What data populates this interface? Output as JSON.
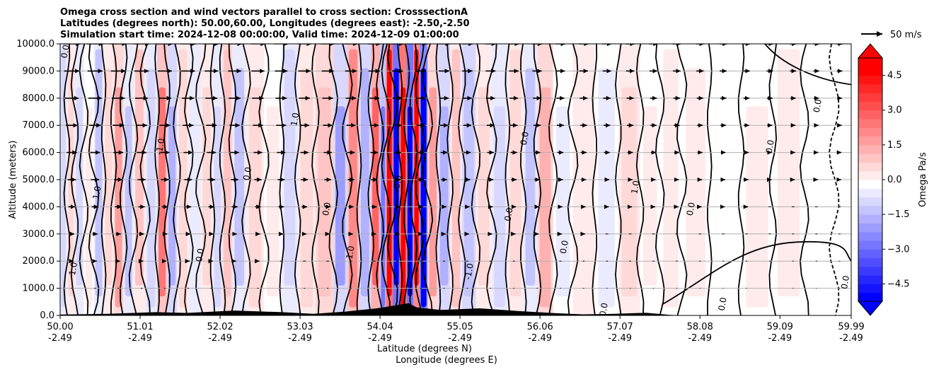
{
  "chart_data": {
    "type": "contour",
    "title": [
      "Omega cross section and wind vectors parallel to cross section: CrosssectionA",
      "Latitudes (degrees north): 50.00,60.00, Longitudes (degrees east): -2.50,-2.50",
      "Simulation start time: 2024-12-08 00:00:00, Valid time: 2024-12-09 01:00:00"
    ],
    "xlabel": "Latitude (degrees N)",
    "xlabel2": "Longitude (degrees E)",
    "ylabel": "Altitude (meters)",
    "xlim": [
      50.0,
      59.99
    ],
    "ylim": [
      0,
      10000
    ],
    "grid": "horizontal",
    "x_ticks": [
      {
        "value": 50.0,
        "lat": "50.00",
        "lon": "-2.49"
      },
      {
        "value": 51.01,
        "lat": "51.01",
        "lon": "-2.49"
      },
      {
        "value": 52.02,
        "lat": "52.02",
        "lon": "-2.49"
      },
      {
        "value": 53.03,
        "lat": "53.03",
        "lon": "-2.49"
      },
      {
        "value": 54.04,
        "lat": "54.04",
        "lon": "-2.49"
      },
      {
        "value": 55.05,
        "lat": "55.05",
        "lon": "-2.49"
      },
      {
        "value": 56.06,
        "lat": "56.06",
        "lon": "-2.49"
      },
      {
        "value": 57.07,
        "lat": "57.07",
        "lon": "-2.49"
      },
      {
        "value": 58.08,
        "lat": "58.08",
        "lon": "-2.49"
      },
      {
        "value": 59.09,
        "lat": "59.09",
        "lon": "-2.49"
      },
      {
        "value": 59.99,
        "lat": "59.99",
        "lon": "-2.49"
      }
    ],
    "y_ticks": [
      {
        "value": 0,
        "label": "0.0"
      },
      {
        "value": 1000,
        "label": "1000.0"
      },
      {
        "value": 2000,
        "label": "2000.0"
      },
      {
        "value": 3000,
        "label": "3000.0"
      },
      {
        "value": 4000,
        "label": "4000.0"
      },
      {
        "value": 5000,
        "label": "5000.0"
      },
      {
        "value": 6000,
        "label": "6000.0"
      },
      {
        "value": 7000,
        "label": "7000.0"
      },
      {
        "value": 8000,
        "label": "8000.0"
      },
      {
        "value": 9000,
        "label": "9000.0"
      },
      {
        "value": 10000,
        "label": "10000.0"
      }
    ],
    "colorbar": {
      "label": "Omega Pa/s",
      "min": -5.25,
      "max": 5.25,
      "step": 0.375,
      "extend": "both",
      "ticks": [
        {
          "value": 4.5,
          "label": "4.5"
        },
        {
          "value": 3.0,
          "label": "3.0"
        },
        {
          "value": 1.5,
          "label": "1.5"
        },
        {
          "value": 0.0,
          "label": "0.0"
        },
        {
          "value": -1.5,
          "label": "−1.5"
        },
        {
          "value": -3.0,
          "label": "−3.0"
        },
        {
          "value": -4.5,
          "label": "−4.5"
        }
      ],
      "colors": {
        "negative": "#0000ff",
        "zero": "#ffffff",
        "positive": "#ff0000"
      }
    },
    "wind_key": {
      "label": "50 m/s",
      "speed": 50
    },
    "omega_columns": [
      {
        "lat": 50.05,
        "value": -0.6
      },
      {
        "lat": 50.12,
        "value": 0.8
      },
      {
        "lat": 50.25,
        "value": -0.9
      },
      {
        "lat": 50.35,
        "value": 0.4
      },
      {
        "lat": 50.5,
        "value": -1.2
      },
      {
        "lat": 50.6,
        "value": 0.9
      },
      {
        "lat": 50.75,
        "value": 1.8
      },
      {
        "lat": 50.85,
        "value": -1.0
      },
      {
        "lat": 51.0,
        "value": 1.2
      },
      {
        "lat": 51.15,
        "value": -0.7
      },
      {
        "lat": 51.3,
        "value": 2.6
      },
      {
        "lat": 51.4,
        "value": -1.4
      },
      {
        "lat": 51.55,
        "value": 0.6
      },
      {
        "lat": 51.7,
        "value": -0.5
      },
      {
        "lat": 51.85,
        "value": 0.7
      },
      {
        "lat": 52.0,
        "value": -0.8
      },
      {
        "lat": 52.1,
        "value": 1.3
      },
      {
        "lat": 52.25,
        "value": -1.1
      },
      {
        "lat": 52.45,
        "value": 0.9
      },
      {
        "lat": 52.7,
        "value": 0.3
      },
      {
        "lat": 52.9,
        "value": -0.9
      },
      {
        "lat": 53.1,
        "value": 0.6
      },
      {
        "lat": 53.35,
        "value": 1.3
      },
      {
        "lat": 53.55,
        "value": -1.9
      },
      {
        "lat": 53.7,
        "value": 2.4
      },
      {
        "lat": 53.85,
        "value": -1.4
      },
      {
        "lat": 54.0,
        "value": 3.1
      },
      {
        "lat": 54.08,
        "value": -2.8
      },
      {
        "lat": 54.15,
        "value": 6.0
      },
      {
        "lat": 54.25,
        "value": -6.0
      },
      {
        "lat": 54.33,
        "value": 5.5
      },
      {
        "lat": 54.42,
        "value": -6.0
      },
      {
        "lat": 54.5,
        "value": 4.8
      },
      {
        "lat": 54.58,
        "value": -5.0
      },
      {
        "lat": 54.7,
        "value": 2.0
      },
      {
        "lat": 54.85,
        "value": -1.6
      },
      {
        "lat": 55.0,
        "value": 1.0
      },
      {
        "lat": 55.15,
        "value": -1.3
      },
      {
        "lat": 55.35,
        "value": 0.7
      },
      {
        "lat": 55.55,
        "value": -0.6
      },
      {
        "lat": 55.75,
        "value": 0.9
      },
      {
        "lat": 55.95,
        "value": -1.0
      },
      {
        "lat": 56.1,
        "value": 1.4
      },
      {
        "lat": 56.35,
        "value": -0.4
      },
      {
        "lat": 56.6,
        "value": 0.5
      },
      {
        "lat": 56.9,
        "value": -0.3
      },
      {
        "lat": 57.2,
        "value": 0.6
      },
      {
        "lat": 57.45,
        "value": 0.4
      },
      {
        "lat": 57.7,
        "value": 0.3
      },
      {
        "lat": 58.0,
        "value": 0.2
      },
      {
        "lat": 58.4,
        "value": 0.15
      },
      {
        "lat": 58.8,
        "value": 0.3
      },
      {
        "lat": 59.2,
        "value": 0.2
      },
      {
        "lat": 59.6,
        "value": -0.1
      },
      {
        "lat": 59.95,
        "value": -0.15
      }
    ],
    "contour_label": "0.0",
    "contour_labels_secondary": [
      "1.0",
      "-1.0"
    ]
  }
}
